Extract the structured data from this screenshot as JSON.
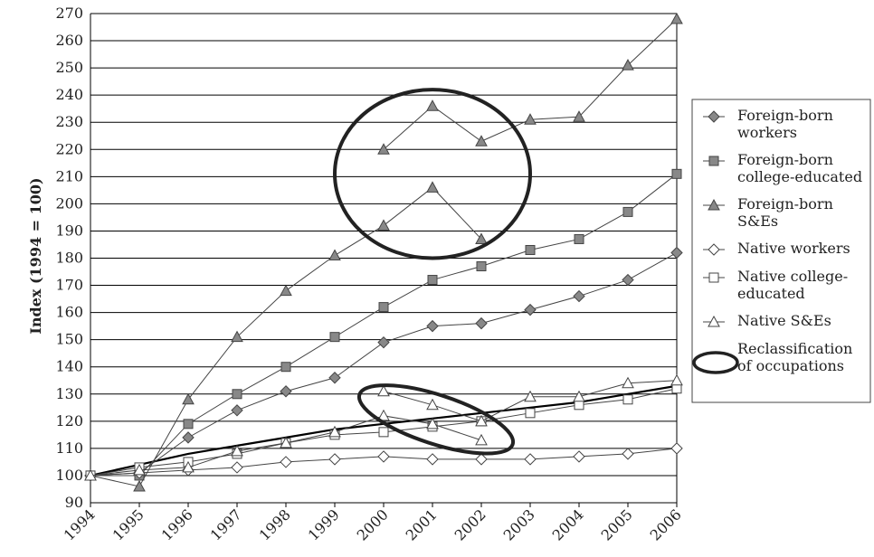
{
  "chart_data": {
    "type": "line",
    "title": "",
    "xlabel": "",
    "ylabel": "Index (1994 = 100)",
    "ylim": [
      90,
      270
    ],
    "yticks": [
      90,
      100,
      110,
      120,
      130,
      140,
      150,
      160,
      170,
      180,
      190,
      200,
      210,
      220,
      230,
      240,
      250,
      260,
      270
    ],
    "categories": [
      "1994",
      "1995",
      "1996",
      "1997",
      "1998",
      "1999",
      "2000",
      "2001",
      "2002",
      "2003",
      "2004",
      "2005",
      "2006"
    ],
    "grid": true,
    "legend_position": "right",
    "series": [
      {
        "name": "Foreign-born workers",
        "marker": "diamond",
        "filled": true,
        "values": [
          100,
          101,
          114,
          124,
          131,
          136,
          149,
          155,
          156,
          161,
          166,
          172,
          182
        ]
      },
      {
        "name": "Foreign-born college-educated",
        "marker": "square",
        "filled": true,
        "values": [
          100,
          100,
          119,
          130,
          140,
          151,
          162,
          172,
          177,
          183,
          187,
          197,
          211
        ]
      },
      {
        "name": "Foreign-born S&Es",
        "marker": "triangle",
        "filled": true,
        "segments": [
          {
            "values": [
              100,
              96,
              128,
              151,
              168,
              181,
              192,
              206,
              187,
              null,
              null,
              null,
              null
            ]
          },
          {
            "values": [
              null,
              null,
              null,
              null,
              null,
              null,
              220,
              236,
              223,
              231,
              232,
              251,
              268
            ]
          }
        ]
      },
      {
        "name": "Native workers",
        "marker": "diamond",
        "filled": false,
        "values": [
          100,
          101,
          102,
          103,
          105,
          106,
          107,
          106,
          106,
          106,
          107,
          108,
          110
        ]
      },
      {
        "name": "Native college-educated",
        "marker": "square",
        "filled": false,
        "values": [
          100,
          103,
          105,
          108,
          112,
          115,
          116,
          118,
          120,
          123,
          126,
          128,
          132
        ]
      },
      {
        "name": "Native S&Es",
        "marker": "triangle",
        "filled": false,
        "segments": [
          {
            "values": [
              100,
              102,
              103,
              109,
              112,
              116,
              122,
              119,
              113,
              null,
              null,
              null,
              null
            ]
          },
          {
            "values": [
              null,
              null,
              null,
              null,
              null,
              null,
              131,
              126,
              120,
              129,
              129,
              134,
              135
            ]
          }
        ]
      }
    ],
    "trend_line": {
      "values": [
        100,
        104,
        108,
        111,
        114,
        117,
        119,
        121,
        123,
        125,
        127,
        130,
        133
      ]
    },
    "annotations": [
      {
        "label": "Reclassification of occupations",
        "shape": "ellipse",
        "around_years": [
          "2000",
          "2002"
        ],
        "around_values": [
          180,
          242
        ]
      },
      {
        "label": "Reclassification of occupations",
        "shape": "ellipse",
        "around_years": [
          "2000",
          "2002"
        ],
        "around_values": [
          111,
          133
        ]
      }
    ],
    "legend": [
      {
        "label": "Foreign-born workers",
        "lines": [
          "Foreign-born",
          "workers"
        ],
        "marker": "diamond",
        "filled": true
      },
      {
        "label": "Foreign-born college-educated",
        "lines": [
          "Foreign-born",
          "college-educated"
        ],
        "marker": "square",
        "filled": true
      },
      {
        "label": "Foreign-born S&Es",
        "lines": [
          "Foreign-born",
          "S&Es"
        ],
        "marker": "triangle",
        "filled": true
      },
      {
        "label": "Native workers",
        "lines": [
          "Native workers"
        ],
        "marker": "diamond",
        "filled": false
      },
      {
        "label": "Native college-educated",
        "lines": [
          "Native college-",
          "educated"
        ],
        "marker": "square",
        "filled": false
      },
      {
        "label": "Native S&Es",
        "lines": [
          "Native S&Es"
        ],
        "marker": "triangle",
        "filled": false
      },
      {
        "label": "Reclassification of occupations",
        "lines": [
          "Reclassification",
          "of occupations"
        ],
        "marker": "ellipse",
        "filled": false
      }
    ]
  }
}
